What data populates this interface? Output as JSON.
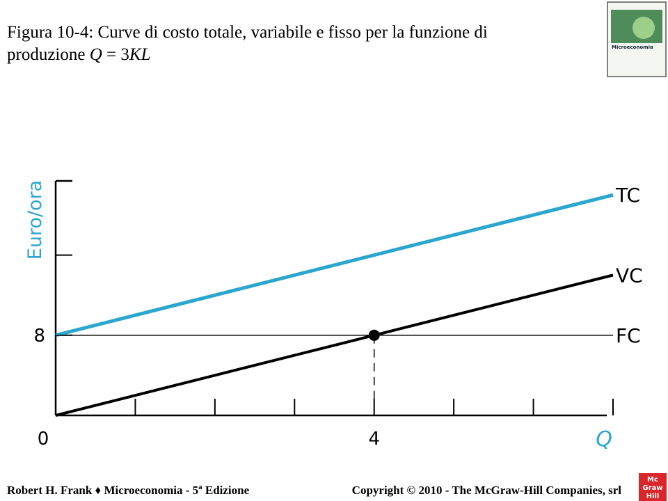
{
  "title_parts": [
    "Figura 10-4: Curve di costo totale, variabile e fisso per la funzione di",
    "produzione ",
    "Q",
    " = 3",
    "KL"
  ],
  "cover": {
    "title": "Microeconomia"
  },
  "chart_data": {
    "type": "line",
    "x": [
      0,
      7
    ],
    "series": [
      {
        "name": "TC",
        "color": "#2aa6cf",
        "line_width": 5,
        "values": [
          8,
          22
        ]
      },
      {
        "name": "VC",
        "color": "#000000",
        "line_width": 4,
        "values": [
          0,
          14
        ]
      },
      {
        "name": "FC",
        "color": "#000000",
        "line_width": 1.5,
        "values": [
          8,
          8
        ]
      }
    ],
    "point": {
      "x": 4,
      "y": 8
    },
    "xlim": [
      0,
      7
    ],
    "ylim": [
      0,
      23.4
    ],
    "xticks": [
      0,
      {
        "value": 1,
        "label": null
      },
      {
        "value": 2,
        "label": null
      },
      {
        "value": 3,
        "label": null
      },
      4,
      {
        "value": 5,
        "label": null
      },
      {
        "value": 6,
        "label": null
      },
      {
        "value": 7,
        "label": null
      }
    ],
    "yticks": [
      8,
      {
        "value": 16,
        "label": null
      }
    ],
    "y_label": "Euro/ora",
    "x_label": "Q",
    "axis_label_color": "#2aa6cf"
  },
  "footer": {
    "left": [
      "Robert H. Frank ♦ Microeconomia - 5",
      "a",
      " Edizione"
    ],
    "right": "Copyright © 2010 - The McGraw-Hill Companies, srl",
    "logo": [
      "Mc",
      "Graw",
      "Hill"
    ]
  }
}
